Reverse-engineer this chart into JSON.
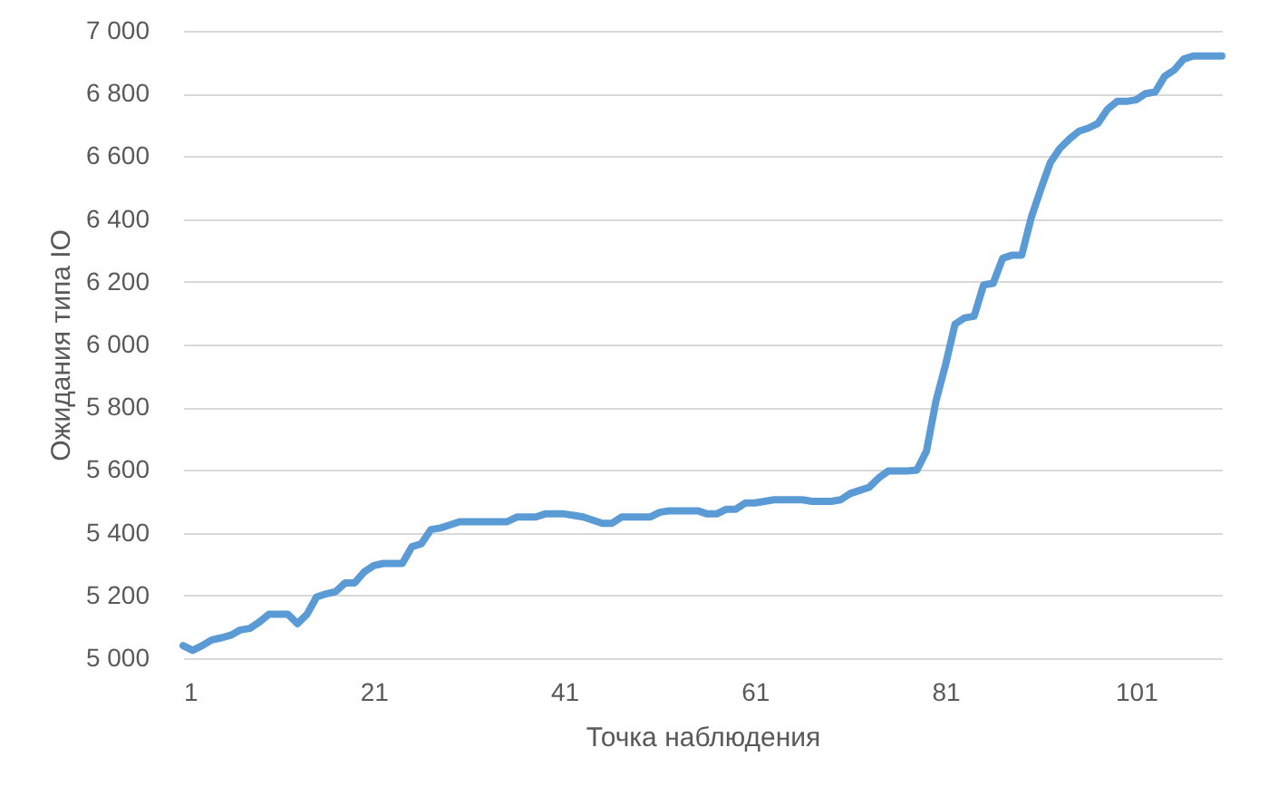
{
  "chart_data": {
    "type": "line",
    "xlabel": "Точка наблюдения",
    "ylabel": "Ожидания типа IO",
    "color": "#5b9bd5",
    "line_style": "solid",
    "grid": "y",
    "x": [
      1,
      2,
      3,
      4,
      5,
      6,
      7,
      8,
      9,
      10,
      11,
      12,
      13,
      14,
      15,
      16,
      17,
      18,
      19,
      20,
      21,
      22,
      23,
      24,
      25,
      26,
      27,
      28,
      29,
      30,
      31,
      32,
      33,
      34,
      35,
      36,
      37,
      38,
      39,
      40,
      41,
      42,
      43,
      44,
      45,
      46,
      47,
      48,
      49,
      50,
      51,
      52,
      53,
      54,
      55,
      56,
      57,
      58,
      59,
      60,
      61,
      62,
      63,
      64,
      65,
      66,
      67,
      68,
      69,
      70,
      71,
      72,
      73,
      74,
      75,
      76,
      77,
      78,
      79,
      80,
      81,
      82,
      83,
      84,
      85,
      86,
      87,
      88,
      89,
      90,
      91,
      92,
      93,
      94,
      95,
      96,
      97,
      98,
      99,
      100,
      101,
      102,
      103,
      104,
      105,
      106,
      107,
      108,
      109,
      110
    ],
    "values": [
      5040,
      5025,
      5040,
      5058,
      5065,
      5073,
      5090,
      5095,
      5115,
      5140,
      5140,
      5140,
      5110,
      5140,
      5195,
      5205,
      5212,
      5240,
      5240,
      5275,
      5295,
      5302,
      5302,
      5302,
      5355,
      5365,
      5410,
      5415,
      5425,
      5435,
      5435,
      5435,
      5435,
      5435,
      5435,
      5450,
      5450,
      5450,
      5460,
      5460,
      5460,
      5455,
      5450,
      5440,
      5430,
      5430,
      5450,
      5450,
      5450,
      5450,
      5465,
      5470,
      5470,
      5470,
      5470,
      5460,
      5460,
      5475,
      5475,
      5495,
      5495,
      5500,
      5505,
      5505,
      5505,
      5505,
      5500,
      5500,
      5500,
      5505,
      5525,
      5535,
      5545,
      5575,
      5597,
      5597,
      5597,
      5600,
      5660,
      5820,
      5935,
      6065,
      6085,
      6090,
      6190,
      6195,
      6275,
      6285,
      6285,
      6405,
      6495,
      6580,
      6625,
      6655,
      6680,
      6690,
      6705,
      6750,
      6775,
      6775,
      6780,
      6800,
      6805,
      6855,
      6875,
      6910,
      6920,
      6920,
      6920,
      6920
    ],
    "xlim": [
      1,
      110
    ],
    "xticks": [
      1,
      21,
      41,
      61,
      81,
      101
    ],
    "ylim": [
      5000,
      7000
    ],
    "yticks": [
      {
        "value": 5000,
        "label": "5 000"
      },
      {
        "value": 5200,
        "label": "5 200"
      },
      {
        "value": 5400,
        "label": "5 400"
      },
      {
        "value": 5600,
        "label": "5 600"
      },
      {
        "value": 5800,
        "label": "5 800"
      },
      {
        "value": 6000,
        "label": "6 000"
      },
      {
        "value": 6200,
        "label": "6 200"
      },
      {
        "value": 6400,
        "label": "6 400"
      },
      {
        "value": 6600,
        "label": "6 600"
      },
      {
        "value": 6800,
        "label": "6 800"
      },
      {
        "value": 7000,
        "label": "7 000"
      }
    ]
  }
}
